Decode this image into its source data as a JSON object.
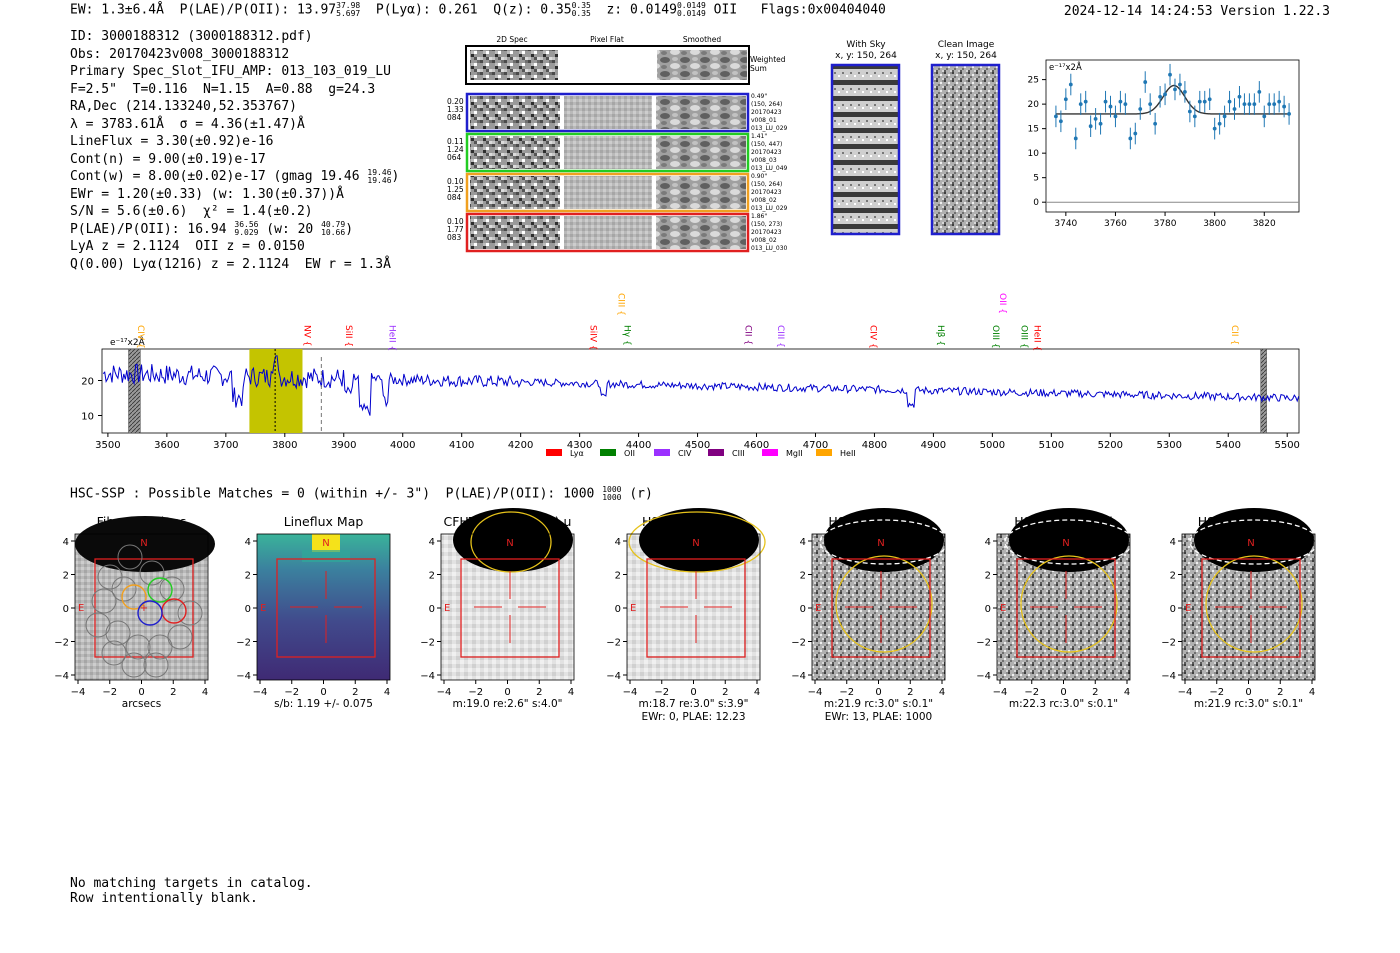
{
  "header": {
    "ew_text": "EW: 1.3±6.4Å",
    "plae_text": "P(LAE)/P(OII): 13.97",
    "plae_hi": "37.98",
    "plae_lo": "5.697",
    "plya_text": "P(Lyα): 0.261",
    "qz_text": "Q(z): 0.35",
    "qz_hi": "0.35",
    "qz_lo": "0.35",
    "z_text": "z: 0.0149",
    "z_hi": "0.0149",
    "z_lo": "0.0149",
    "z_line": "OII",
    "flags": "Flags:0x00404040",
    "datetime": "2024-12-14 14:24:53",
    "version": "Version 1.22.3"
  },
  "info": {
    "lines": [
      "ID: 3000188312 (3000188312.pdf)",
      "Obs: 20170423v008_3000188312",
      "Primary Spec_Slot_IFU_AMP: 013_103_019_LU",
      "F=2.5\"  T=0.116  N=1.15  A=0.88  g=24.3",
      "RA,Dec (214.133240,52.353767)",
      "λ = 3783.61Å  σ = 4.36(±1.47)Å",
      "LineFlux = 3.30(±0.92)e-16",
      "Cont(n) = 9.00(±0.19)e-17",
      "Cont(w) = 8.00(±0.02)e-17 (gmag 19.46",
      "EWr = 1.20(±0.33) (w: 1.30(±0.37))Å",
      "S/N = 5.6(±0.6)  χ² = 1.4(±0.2)",
      "P(LAE)/P(OII): 16.94",
      "LyA z = 2.1124  OII z = 0.0150",
      "Q(0.00) Lyα(1216) z = 2.1124  EW r = 1.3Å"
    ],
    "gmag_hi": "19.46",
    "gmag_lo": "19.46",
    "plae2_hi": "36.56",
    "plae2_lo": "9.029",
    "plae2_w": "(w: 20",
    "plae2_w_hi": "40.79",
    "plae2_w_lo": "10.66",
    "plae2_close": ")"
  },
  "cutouts": {
    "col_headers": [
      "2D Spec",
      "Pixel Flat",
      "Smoothed"
    ],
    "weighted_label": [
      "Weighted",
      "Sum"
    ],
    "rows": [
      {
        "left": [
          "0.20",
          "1.33",
          "084"
        ],
        "right": [
          "0.49\"",
          "(150, 264)",
          "20170423",
          "v008_01",
          "013_LU_029"
        ],
        "color": "#1f1fcc"
      },
      {
        "left": [
          "0.11",
          "1.24",
          "064"
        ],
        "right": [
          "1.41\"",
          "(150, 447)",
          "20170423",
          "v008_03",
          "013_LU_049"
        ],
        "color": "#22cc22"
      },
      {
        "left": [
          "0.10",
          "1.25",
          "084"
        ],
        "right": [
          "0.90\"",
          "(150, 264)",
          "20170423",
          "v008_02",
          "013_LU_029"
        ],
        "color": "#f0a020"
      },
      {
        "left": [
          "0.10",
          "1.77",
          "083"
        ],
        "right": [
          "1.86\"",
          "(150, 273)",
          "20170423",
          "v008_02",
          "013_LU_030"
        ],
        "color": "#e02020"
      }
    ]
  },
  "sky_panels": {
    "with_sky": [
      "With Sky",
      "x, y: 150, 264"
    ],
    "clean": [
      "Clean Image",
      "x, y: 150, 264"
    ]
  },
  "chart_data": [
    {
      "type": "scatter",
      "title": "",
      "ylabel": "e⁻¹⁷x2Å",
      "xlim": [
        3732,
        3834
      ],
      "ylim": [
        -2,
        29
      ],
      "xticks": [
        "3740",
        "3760",
        "3780",
        "3800",
        "3820"
      ],
      "yticks": [
        "0",
        "5",
        "10",
        "15",
        "20",
        "25"
      ],
      "points_x": [
        3736,
        3738,
        3740,
        3742,
        3744,
        3746,
        3748,
        3750,
        3752,
        3754,
        3756,
        3758,
        3760,
        3762,
        3764,
        3766,
        3768,
        3770,
        3772,
        3774,
        3776,
        3778,
        3780,
        3782,
        3784,
        3786,
        3788,
        3790,
        3792,
        3794,
        3796,
        3798,
        3800,
        3802,
        3804,
        3806,
        3808,
        3810,
        3812,
        3814,
        3816,
        3818,
        3820,
        3822,
        3824,
        3826,
        3828,
        3830
      ],
      "points_y": [
        17.5,
        16.5,
        21,
        24,
        13,
        20,
        20.5,
        15.5,
        17,
        16,
        20.5,
        19.5,
        17.5,
        20.5,
        20,
        13,
        14,
        19,
        24.5,
        20,
        16,
        21.5,
        22,
        26,
        23,
        24,
        22.5,
        18.5,
        17.5,
        20.5,
        20.5,
        21,
        15,
        16,
        17.5,
        20.5,
        19,
        21.5,
        20,
        20,
        20,
        22.5,
        17.5,
        20,
        20,
        20.5,
        19.5,
        18
      ],
      "fit": {
        "continuum": 18,
        "peak": 23.8,
        "center": 3783.6,
        "sigma": 4.36
      }
    },
    {
      "type": "line",
      "title": "",
      "ylabel": "e⁻¹⁷x2Å",
      "xlim": [
        3490,
        5520
      ],
      "ylim": [
        5,
        29
      ],
      "xticks": [
        "3500",
        "3600",
        "3700",
        "3800",
        "3900",
        "4000",
        "4100",
        "4200",
        "4300",
        "4400",
        "4500",
        "4600",
        "4700",
        "4800",
        "4900",
        "5000",
        "5100",
        "5200",
        "5300",
        "5400",
        "5500"
      ],
      "yticks": [
        "10",
        "20"
      ],
      "highlight": [
        3740,
        3830
      ],
      "masked": [
        [
          3535,
          3555
        ],
        [
          5455,
          5465
        ]
      ],
      "markers": [
        3783.6,
        3862
      ],
      "color": "#0000cc",
      "lines": [
        {
          "name": "CIV",
          "x": 3580,
          "color": "#ffa500",
          "tall": false
        },
        {
          "name": "NV",
          "x": 3862,
          "color": "#ff0000",
          "tall": false
        },
        {
          "name": "SiII",
          "x": 3933,
          "color": "#ff0000",
          "tall": false
        },
        {
          "name": "HeII",
          "x": 4006,
          "color": "#9b30ff",
          "tall": false
        },
        {
          "name": "SiIV",
          "x": 4347,
          "color": "#ff0000",
          "tall": false
        },
        {
          "name": "CIII",
          "x": 4395,
          "color": "#ffa500",
          "tall": true
        },
        {
          "name": "Hγ",
          "x": 4405,
          "color": "#008000",
          "tall": false
        },
        {
          "name": "CII",
          "x": 4610,
          "color": "#800080",
          "tall": false
        },
        {
          "name": "CIII",
          "x": 4665,
          "color": "#9b30ff",
          "tall": false
        },
        {
          "name": "CIV",
          "x": 4822,
          "color": "#ff0000",
          "tall": false
        },
        {
          "name": "Hβ",
          "x": 4937,
          "color": "#008000",
          "tall": false
        },
        {
          "name": "OII",
          "x": 5042,
          "color": "#ff00ff",
          "tall": true
        },
        {
          "name": "OIII",
          "x": 5030,
          "color": "#008000",
          "tall": false
        },
        {
          "name": "OIII",
          "x": 5078,
          "color": "#008000",
          "tall": false
        },
        {
          "name": "HeII",
          "x": 5100,
          "color": "#ff0000",
          "tall": false
        },
        {
          "name": "CII",
          "x": 5435,
          "color": "#ffa500",
          "tall": false
        }
      ],
      "legend": [
        {
          "name": "Lyα",
          "color": "#ff0000"
        },
        {
          "name": "OII",
          "color": "#008000"
        },
        {
          "name": "CIV",
          "color": "#9b30ff"
        },
        {
          "name": "CIII",
          "color": "#800080"
        },
        {
          "name": "MgII",
          "color": "#ff00ff"
        },
        {
          "name": "HeII",
          "color": "#ffa500"
        }
      ]
    }
  ],
  "hsc": {
    "line": "HSC-SSP : Possible Matches = 0 (within +/- 3\")  P(LAE)/P(OII): 1000",
    "frac_hi": "1000",
    "frac_lo": "1000",
    "suffix": "(r)"
  },
  "image_panels": [
    {
      "title": "Fiber Positions",
      "sub1": "arcsecs",
      "sub2": "",
      "kind": "fibers"
    },
    {
      "title": "Lineflux Map",
      "sub1": "s/b: 1.19 +/- 0.075",
      "sub2": "",
      "kind": "lineflux"
    },
    {
      "title": "CFHTLS/Meg(26.8) u",
      "sub1": "m:19.0  re:2.6\"  s:4.0\"",
      "sub2": "",
      "kind": "u"
    },
    {
      "title": "HSC SSP(26.8) g",
      "sub1": "m:18.7  re:3.0\"  s:3.9\"",
      "sub2": "EWr: 0, PLAE: 12.23",
      "kind": "g"
    },
    {
      "title": "HSC SSP(26.4) r",
      "sub1": "m:21.9 rc:3.0\"  s:0.1\"",
      "sub2": "EWr: 13, PLAE: 1000",
      "kind": "r"
    },
    {
      "title": "HSC SSP(26.4) i",
      "sub1": "m:22.3 rc:3.0\"  s:0.1\"",
      "sub2": "",
      "kind": "i"
    },
    {
      "title": "HSC SSP(25.5) z",
      "sub1": "m:21.9 rc:3.0\"  s:0.1\"",
      "sub2": "",
      "kind": "z"
    }
  ],
  "panel_axis": {
    "ticks": [
      "−4",
      "−2",
      "0",
      "2",
      "4"
    ],
    "yticks": [
      "4",
      "2",
      "0",
      "−2",
      "−4"
    ],
    "north": "N",
    "east": "E"
  },
  "footer": {
    "lines": [
      "No matching targets in catalog.",
      "Row intentionally blank."
    ]
  }
}
